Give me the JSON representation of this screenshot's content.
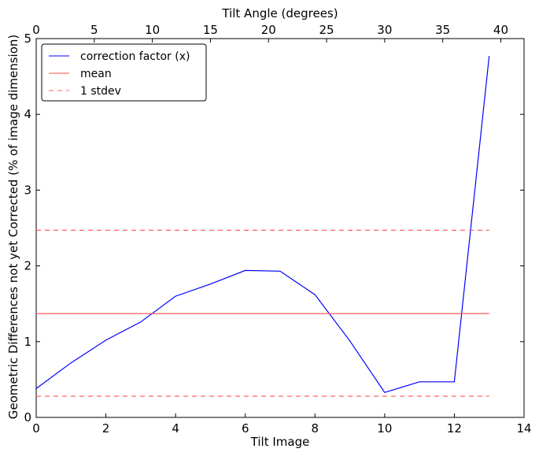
{
  "chart_data": {
    "type": "line",
    "xlabel": "Tilt Image",
    "ylabel": "Geometric Differences not yet Corrected (% of image dimension)",
    "x2label": "Tilt Angle (degrees)",
    "xlim": [
      0,
      14
    ],
    "ylim": [
      0,
      5
    ],
    "x2lim": [
      0,
      42
    ],
    "xticks": [
      0,
      2,
      4,
      6,
      8,
      10,
      12,
      14
    ],
    "yticks": [
      0,
      1,
      2,
      3,
      4,
      5
    ],
    "x2ticks": [
      0,
      5,
      10,
      15,
      20,
      25,
      30,
      35,
      40
    ],
    "grid": false,
    "legend_position": "top-left",
    "series": [
      {
        "name": "correction factor (x)",
        "color": "#0000ff",
        "style": "solid",
        "x": [
          0,
          1,
          2,
          3,
          4,
          5,
          6,
          7,
          8,
          9,
          10,
          11,
          12,
          13
        ],
        "y": [
          0.38,
          0.72,
          1.02,
          1.26,
          1.6,
          1.76,
          1.94,
          1.93,
          1.62,
          1.01,
          0.33,
          0.47,
          0.47,
          4.77
        ]
      },
      {
        "name": "mean",
        "color": "#ff4d4d",
        "style": "solid",
        "x": [
          0,
          13
        ],
        "y": [
          1.37,
          1.37
        ]
      },
      {
        "name": "1 stdev",
        "color": "#ff6666",
        "style": "dashed",
        "x": [
          0,
          13
        ],
        "y": [
          2.47,
          2.47
        ]
      },
      {
        "name": "",
        "color": "#ff6666",
        "style": "dashed",
        "x": [
          0,
          13
        ],
        "y": [
          0.28,
          0.28
        ]
      }
    ],
    "legend": [
      "correction factor (x)",
      "mean",
      "1 stdev"
    ]
  }
}
